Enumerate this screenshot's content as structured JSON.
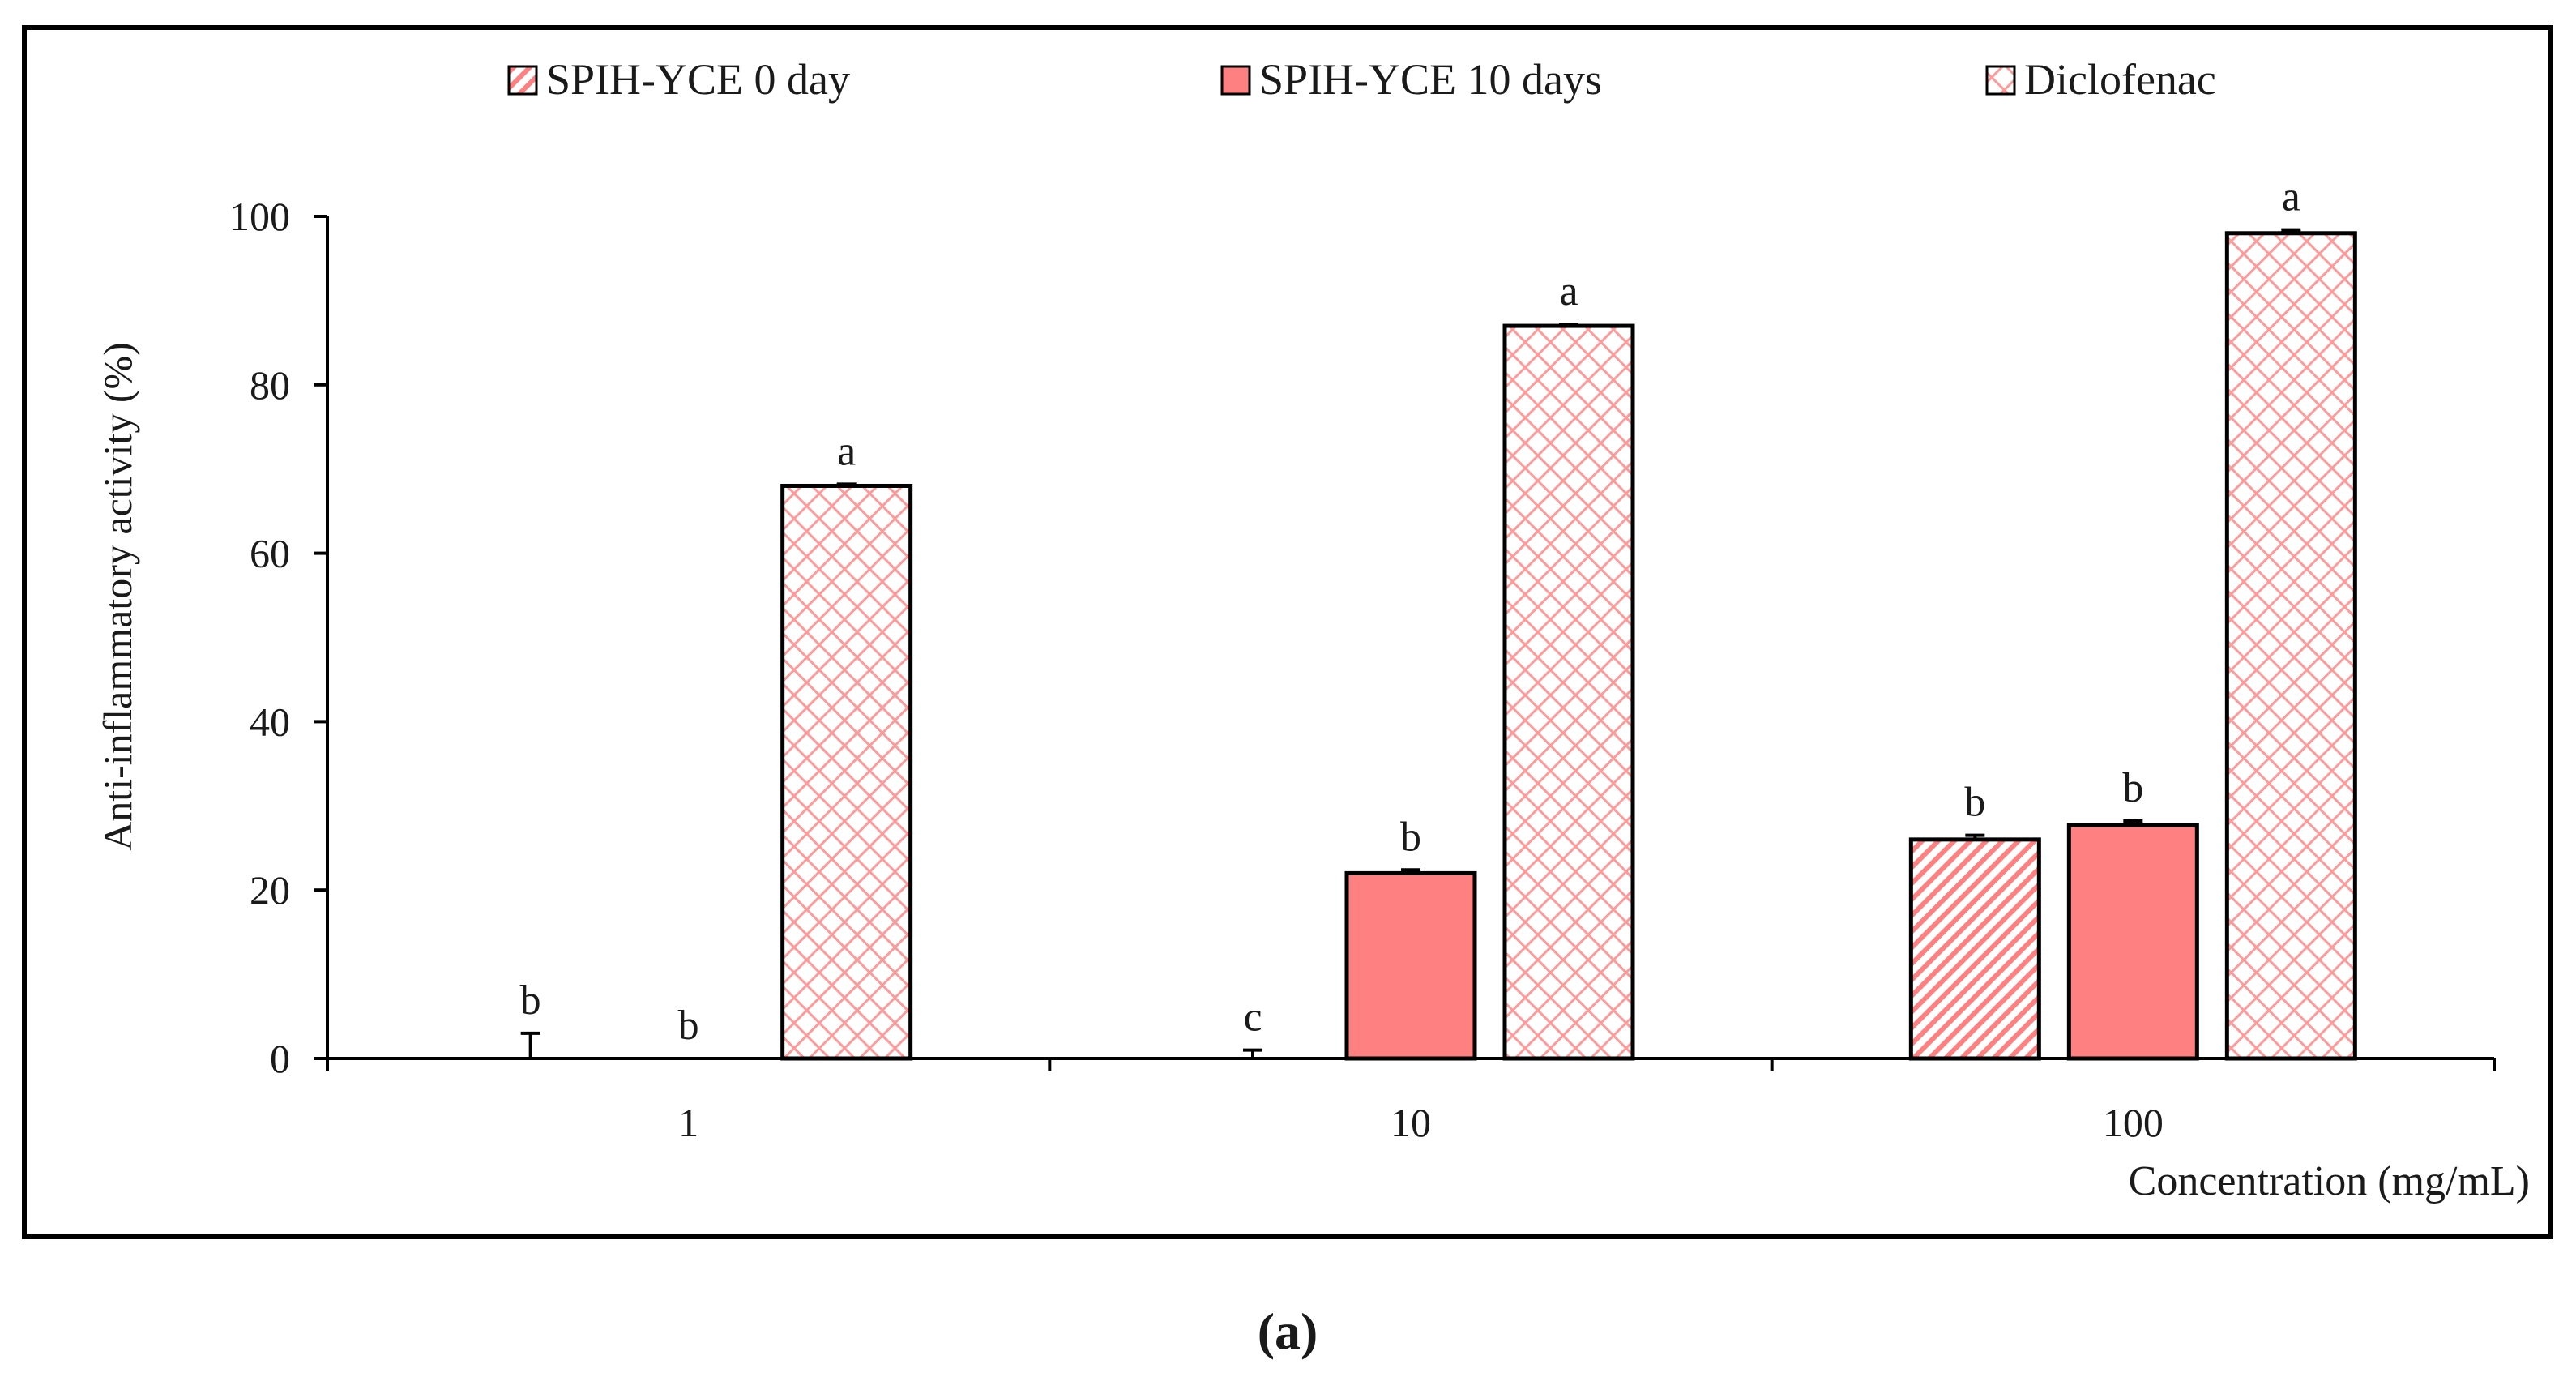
{
  "panel_label": "(a)",
  "chart_data": {
    "type": "bar",
    "categories": [
      "1",
      "10",
      "100"
    ],
    "series": [
      {
        "name": "SPIH-YCE 0 day",
        "pattern": "hatch",
        "values": [
          0,
          0,
          26
        ],
        "errors": [
          3,
          1,
          0.5
        ],
        "letters": [
          "b",
          "c",
          "b"
        ]
      },
      {
        "name": "SPIH-YCE 10 days",
        "pattern": "solid",
        "values": [
          0,
          22,
          27.7
        ],
        "errors": [
          0,
          0.4,
          0.5
        ],
        "letters": [
          "b",
          "b",
          "b"
        ]
      },
      {
        "name": "Diclofenac",
        "pattern": "crosshatch",
        "values": [
          68,
          87,
          98
        ],
        "errors": [
          0.2,
          0.2,
          0.4
        ],
        "letters": [
          "a",
          "a",
          "a"
        ]
      }
    ],
    "xlabel": "Concentration (mg/mL)",
    "ylabel": "Anti-inflammatory activity (%)",
    "ylim": [
      0,
      100
    ],
    "yticks": [
      0,
      20,
      40,
      60,
      80,
      100
    ],
    "grid": false,
    "legend_position": "top",
    "colors": {
      "bar_fill": "#ff8080",
      "hatch_line": "#ff8080",
      "bar_stroke": "#000000"
    }
  }
}
